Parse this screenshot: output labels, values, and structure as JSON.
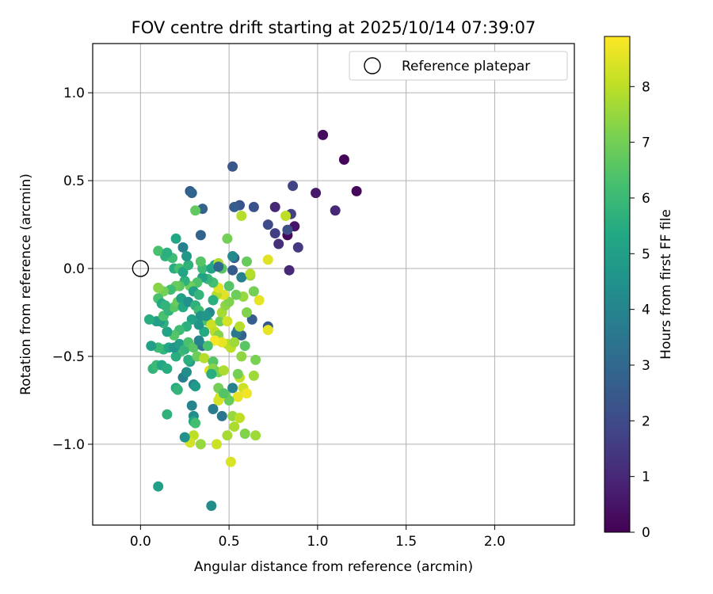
{
  "chart_data": {
    "type": "scatter",
    "title": "FOV centre drift starting at 2025/10/14 07:39:07",
    "xlabel": "Angular distance from reference (arcmin)",
    "ylabel": "Rotation from reference (arcmin)",
    "xlim": [
      -0.27,
      2.45
    ],
    "ylim": [
      -1.46,
      1.28
    ],
    "xticks": [
      0.0,
      0.5,
      1.0,
      1.5,
      2.0
    ],
    "xtick_labels": [
      "0.0",
      "0.5",
      "1.0",
      "1.5",
      "2.0"
    ],
    "yticks": [
      -1.0,
      -0.5,
      0.0,
      0.5,
      1.0
    ],
    "ytick_labels": [
      "−1.0",
      "−0.5",
      "0.0",
      "0.5",
      "1.0"
    ],
    "grid": true,
    "legend": {
      "position": "top-right",
      "label": "Reference platepar"
    },
    "reference_point": {
      "x": 0.0,
      "y": 0.0
    },
    "colorbar": {
      "label": "Hours from first FF file",
      "range": [
        0,
        8.9
      ],
      "ticks": [
        0,
        1,
        2,
        3,
        4,
        5,
        6,
        7,
        8
      ],
      "tick_labels": [
        "0",
        "1",
        "2",
        "3",
        "4",
        "5",
        "6",
        "7",
        "8"
      ],
      "colormap": "viridis"
    },
    "points": [
      [
        1.03,
        0.76,
        0.3
      ],
      [
        1.15,
        0.62,
        0.1
      ],
      [
        1.22,
        0.44,
        0.2
      ],
      [
        0.99,
        0.43,
        0.6
      ],
      [
        1.1,
        0.33,
        1.0
      ],
      [
        0.86,
        0.47,
        1.8
      ],
      [
        0.76,
        0.35,
        1.0
      ],
      [
        0.85,
        0.31,
        1.7
      ],
      [
        0.83,
        0.19,
        0.2
      ],
      [
        0.87,
        0.24,
        0.5
      ],
      [
        0.83,
        0.22,
        2.1
      ],
      [
        0.78,
        0.14,
        1.2
      ],
      [
        0.89,
        0.12,
        1.5
      ],
      [
        0.76,
        0.2,
        1.6
      ],
      [
        0.72,
        0.25,
        2.0
      ],
      [
        0.84,
        -0.01,
        1.0
      ],
      [
        0.52,
        0.58,
        2.4
      ],
      [
        0.64,
        0.35,
        2.2
      ],
      [
        0.56,
        0.36,
        2.3
      ],
      [
        0.53,
        0.35,
        2.6
      ],
      [
        0.28,
        0.44,
        2.5
      ],
      [
        0.29,
        0.43,
        2.9
      ],
      [
        0.35,
        0.34,
        2.8
      ],
      [
        0.34,
        0.19,
        2.8
      ],
      [
        0.53,
        0.06,
        2.7
      ],
      [
        0.52,
        -0.01,
        2.5
      ],
      [
        0.57,
        0.3,
        7.9
      ],
      [
        0.31,
        0.33,
        6.7
      ],
      [
        0.82,
        0.3,
        8.0
      ],
      [
        0.72,
        0.05,
        8.5
      ],
      [
        0.49,
        0.17,
        7.0
      ],
      [
        0.67,
        -0.18,
        8.6
      ],
      [
        0.62,
        -0.04,
        7.5
      ],
      [
        0.6,
        0.04,
        6.8
      ],
      [
        0.72,
        -0.33,
        2.4
      ],
      [
        0.72,
        -0.35,
        8.6
      ],
      [
        0.63,
        -0.29,
        2.6
      ],
      [
        0.57,
        -0.38,
        2.8
      ],
      [
        0.55,
        -0.35,
        3.4
      ],
      [
        0.54,
        -0.37,
        3.6
      ],
      [
        0.59,
        -0.44,
        6.6
      ],
      [
        0.65,
        -0.52,
        7.1
      ],
      [
        0.64,
        -0.61,
        7.6
      ],
      [
        0.56,
        -0.62,
        8.1
      ],
      [
        0.58,
        -0.68,
        8.2
      ],
      [
        0.52,
        -0.68,
        3.9
      ],
      [
        0.55,
        -0.73,
        8.6
      ],
      [
        0.6,
        -0.71,
        8.7
      ],
      [
        0.48,
        -0.72,
        7.0
      ],
      [
        0.5,
        -0.75,
        6.8
      ],
      [
        0.45,
        -0.73,
        8.4
      ],
      [
        0.44,
        -0.75,
        8.3
      ],
      [
        0.52,
        -0.84,
        7.5
      ],
      [
        0.56,
        -0.85,
        8.0
      ],
      [
        0.53,
        -0.9,
        7.8
      ],
      [
        0.59,
        -0.94,
        7.2
      ],
      [
        0.65,
        -0.95,
        7.6
      ],
      [
        0.49,
        -0.95,
        7.7
      ],
      [
        0.43,
        -1.0,
        8.2
      ],
      [
        0.34,
        -1.0,
        7.5
      ],
      [
        0.3,
        -0.95,
        8.0
      ],
      [
        0.28,
        -0.99,
        8.3
      ],
      [
        0.25,
        -0.96,
        4.5
      ],
      [
        0.51,
        -1.1,
        8.4
      ],
      [
        0.4,
        -1.35,
        4.3
      ],
      [
        0.1,
        -1.24,
        5.0
      ],
      [
        0.46,
        -0.84,
        3.5
      ],
      [
        0.41,
        -0.8,
        3.7
      ],
      [
        0.29,
        -0.78,
        4.0
      ],
      [
        0.3,
        -0.84,
        4.3
      ],
      [
        0.3,
        -0.87,
        5.2
      ],
      [
        0.31,
        -0.88,
        6.2
      ],
      [
        0.15,
        -0.83,
        5.7
      ],
      [
        0.2,
        -0.68,
        5.4
      ],
      [
        0.21,
        -0.69,
        5.8
      ],
      [
        0.3,
        -0.66,
        4.0
      ],
      [
        0.31,
        -0.67,
        4.8
      ],
      [
        0.44,
        -0.68,
        7.0
      ],
      [
        0.47,
        -0.71,
        6.5
      ],
      [
        0.24,
        -0.62,
        3.8
      ],
      [
        0.26,
        -0.59,
        4.3
      ],
      [
        0.28,
        -0.53,
        5.0
      ],
      [
        0.27,
        -0.52,
        5.6
      ],
      [
        0.23,
        -0.47,
        6.2
      ],
      [
        0.2,
        -0.5,
        5.5
      ],
      [
        0.07,
        -0.57,
        5.8
      ],
      [
        0.09,
        -0.55,
        6.0
      ],
      [
        0.12,
        -0.55,
        5.3
      ],
      [
        0.15,
        -0.57,
        5.5
      ],
      [
        0.13,
        -0.46,
        5.8
      ],
      [
        0.1,
        -0.45,
        6.0
      ],
      [
        0.16,
        -0.45,
        5.3
      ],
      [
        0.06,
        -0.44,
        5.0
      ],
      [
        0.19,
        -0.45,
        4.6
      ],
      [
        0.22,
        -0.43,
        4.9
      ],
      [
        0.25,
        -0.46,
        5.8
      ],
      [
        0.27,
        -0.42,
        6.3
      ],
      [
        0.3,
        -0.45,
        6.6
      ],
      [
        0.32,
        -0.5,
        6.9
      ],
      [
        0.35,
        -0.44,
        3.5
      ],
      [
        0.33,
        -0.41,
        4.0
      ],
      [
        0.36,
        -0.36,
        5.4
      ],
      [
        0.33,
        -0.32,
        4.6
      ],
      [
        0.29,
        -0.29,
        5.1
      ],
      [
        0.26,
        -0.33,
        5.6
      ],
      [
        0.22,
        -0.35,
        6.1
      ],
      [
        0.19,
        -0.38,
        6.5
      ],
      [
        0.15,
        -0.36,
        5.2
      ],
      [
        0.13,
        -0.31,
        5.7
      ],
      [
        0.11,
        -0.3,
        4.9
      ],
      [
        0.09,
        -0.3,
        5.0
      ],
      [
        0.05,
        -0.29,
        5.5
      ],
      [
        0.13,
        -0.27,
        6.3
      ],
      [
        0.16,
        -0.24,
        5.8
      ],
      [
        0.19,
        -0.22,
        6.6
      ],
      [
        0.21,
        -0.19,
        6.8
      ],
      [
        0.23,
        -0.17,
        5.0
      ],
      [
        0.24,
        -0.22,
        5.4
      ],
      [
        0.27,
        -0.19,
        4.4
      ],
      [
        0.31,
        -0.21,
        5.7
      ],
      [
        0.33,
        -0.24,
        6.1
      ],
      [
        0.34,
        -0.27,
        4.5
      ],
      [
        0.38,
        -0.3,
        6.4
      ],
      [
        0.4,
        -0.32,
        8.2
      ],
      [
        0.42,
        -0.36,
        8.0
      ],
      [
        0.44,
        -0.38,
        7.3
      ],
      [
        0.45,
        -0.3,
        6.9
      ],
      [
        0.46,
        -0.25,
        7.7
      ],
      [
        0.48,
        -0.21,
        7.4
      ],
      [
        0.5,
        -0.19,
        7.2
      ],
      [
        0.47,
        -0.15,
        8.5
      ],
      [
        0.43,
        -0.15,
        7.9
      ],
      [
        0.41,
        -0.18,
        5.6
      ],
      [
        0.39,
        -0.25,
        4.2
      ],
      [
        0.37,
        -0.27,
        4.7
      ],
      [
        0.49,
        -0.3,
        8.3
      ],
      [
        0.49,
        -0.43,
        7.9
      ],
      [
        0.51,
        -0.45,
        8.0
      ],
      [
        0.46,
        -0.42,
        8.6
      ],
      [
        0.42,
        -0.41,
        8.8
      ],
      [
        0.38,
        -0.44,
        6.3
      ],
      [
        0.36,
        -0.51,
        7.9
      ],
      [
        0.41,
        -0.53,
        6.5
      ],
      [
        0.39,
        -0.58,
        8.4
      ],
      [
        0.41,
        -0.57,
        7.3
      ],
      [
        0.44,
        -0.59,
        7.0
      ],
      [
        0.47,
        -0.58,
        7.8
      ],
      [
        0.4,
        -0.6,
        5.5
      ],
      [
        0.55,
        -0.6,
        7.0
      ],
      [
        0.57,
        -0.5,
        7.4
      ],
      [
        0.53,
        -0.42,
        7.6
      ],
      [
        0.56,
        -0.33,
        7.9
      ],
      [
        0.6,
        -0.25,
        7.2
      ],
      [
        0.58,
        -0.16,
        7.5
      ],
      [
        0.54,
        -0.15,
        6.9
      ],
      [
        0.5,
        -0.1,
        6.5
      ],
      [
        0.57,
        -0.05,
        3.8
      ],
      [
        0.62,
        -0.03,
        7.9
      ],
      [
        0.64,
        -0.13,
        7.0
      ],
      [
        0.44,
        -0.11,
        8.5
      ],
      [
        0.41,
        -0.08,
        6.2
      ],
      [
        0.38,
        -0.06,
        5.9
      ],
      [
        0.35,
        -0.05,
        5.1
      ],
      [
        0.32,
        -0.08,
        6.4
      ],
      [
        0.28,
        -0.1,
        6.9
      ],
      [
        0.25,
        -0.07,
        5.7
      ],
      [
        0.22,
        -0.1,
        6.6
      ],
      [
        0.2,
        -0.1,
        6.8
      ],
      [
        0.17,
        -0.12,
        6.1
      ],
      [
        0.13,
        -0.13,
        7.0
      ],
      [
        0.1,
        -0.17,
        6.3
      ],
      [
        0.12,
        -0.2,
        5.4
      ],
      [
        0.14,
        -0.21,
        5.8
      ],
      [
        0.1,
        -0.11,
        7.3
      ],
      [
        0.19,
        0.0,
        5.5
      ],
      [
        0.22,
        0.0,
        6.3
      ],
      [
        0.24,
        -0.02,
        5.2
      ],
      [
        0.27,
        0.02,
        5.7
      ],
      [
        0.3,
        -0.13,
        5.0
      ],
      [
        0.33,
        -0.15,
        5.8
      ],
      [
        0.35,
        0.0,
        6.0
      ],
      [
        0.34,
        0.04,
        6.5
      ],
      [
        0.4,
        0.0,
        5.1
      ],
      [
        0.42,
        0.02,
        5.4
      ],
      [
        0.44,
        0.03,
        7.8
      ],
      [
        0.46,
        0.0,
        6.6
      ],
      [
        0.52,
        0.07,
        4.2
      ],
      [
        0.44,
        0.01,
        3.0
      ],
      [
        0.14,
        0.07,
        5.7
      ],
      [
        0.18,
        0.06,
        6.1
      ],
      [
        0.2,
        0.17,
        5.3
      ],
      [
        0.24,
        0.12,
        3.8
      ],
      [
        0.26,
        0.07,
        4.7
      ],
      [
        0.1,
        0.1,
        6.3
      ],
      [
        0.15,
        0.09,
        5.6
      ]
    ]
  }
}
